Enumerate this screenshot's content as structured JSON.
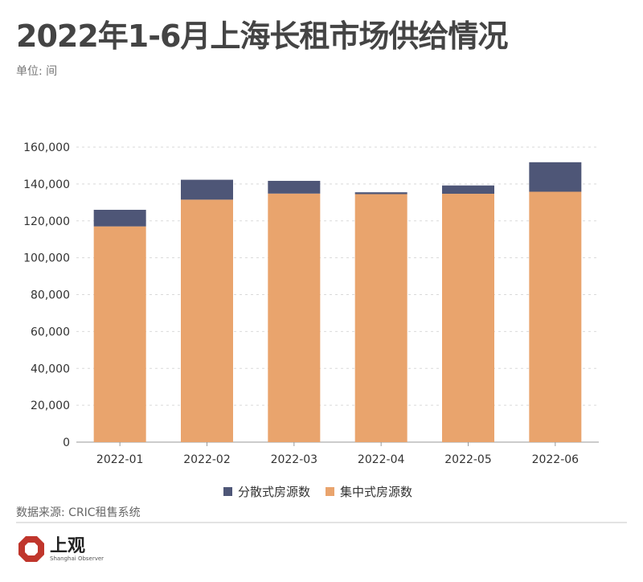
{
  "header": {
    "title": "2022年1-6月上海长租市场供给情况",
    "unit": "单位: 间"
  },
  "footer": {
    "source": "数据来源: CRIC租售系统",
    "logo_cn": "上观",
    "logo_en": "Shanghai Observer"
  },
  "colors": {
    "centralized": "#E9A46D",
    "distributed": "#4E5677",
    "grid": "#d9d9d9",
    "axis": "#999999"
  },
  "chart_data": {
    "type": "bar",
    "stacked": true,
    "categories": [
      "2022-01",
      "2022-02",
      "2022-03",
      "2022-04",
      "2022-05",
      "2022-06"
    ],
    "series": [
      {
        "name": "集中式房源数",
        "values": [
          117000,
          131500,
          134800,
          134500,
          134700,
          135800
        ]
      },
      {
        "name": "分散式房源数",
        "values": [
          9000,
          10800,
          6900,
          1000,
          4500,
          16000
        ]
      }
    ],
    "ylim": [
      0,
      160000
    ],
    "yticks": [
      0,
      20000,
      40000,
      60000,
      80000,
      100000,
      120000,
      140000,
      160000
    ],
    "ytick_labels": [
      "0",
      "20,000",
      "40,000",
      "60,000",
      "80,000",
      "100,000",
      "120,000",
      "140,000",
      "160,000"
    ],
    "grid": true,
    "legend": [
      "分散式房源数",
      "集中式房源数"
    ],
    "legend_position": "bottom"
  }
}
